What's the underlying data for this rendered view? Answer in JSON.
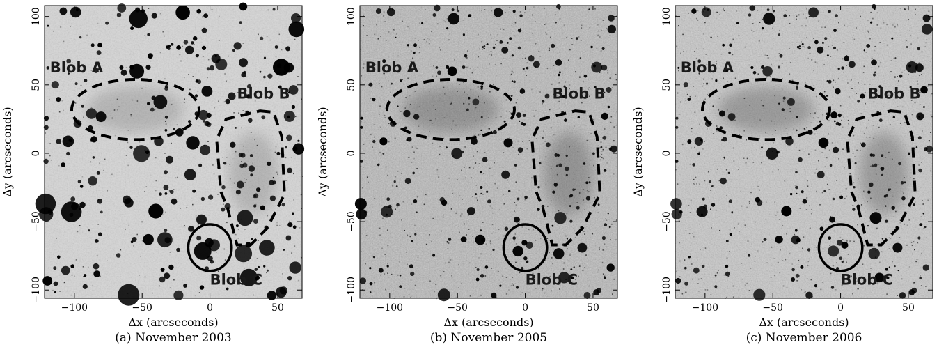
{
  "panels": [
    {
      "caption": "(a) November 2003",
      "noise_base": 212,
      "noise_amp": 62,
      "star_scale": 1.35
    },
    {
      "caption": "(b) November 2005",
      "noise_base": 160,
      "noise_amp": 110,
      "star_scale": 0.85
    },
    {
      "caption": "(c) November 2006",
      "noise_base": 190,
      "noise_amp": 80,
      "star_scale": 0.9
    }
  ],
  "axes": {
    "xlabel": "Δx (arcseconds)",
    "ylabel": "Δy (arcseconds)",
    "xlim": [
      -122,
      68
    ],
    "ylim": [
      -106,
      108
    ],
    "xticks": [
      -100,
      -50,
      0,
      50
    ],
    "yticks": [
      -100,
      -50,
      0,
      50,
      100
    ]
  },
  "blobs": {
    "a_label": "Blob A",
    "b_label": "Blob B",
    "c_label": "Blob C",
    "a_center": [
      -55,
      32
    ],
    "a_radii": [
      47,
      22
    ],
    "b_outline": [
      [
        37,
        31
      ],
      [
        47,
        30
      ],
      [
        53,
        12
      ],
      [
        55,
        -30
      ],
      [
        42,
        -55
      ],
      [
        30,
        -67
      ],
      [
        20,
        -67
      ],
      [
        13,
        -40
      ],
      [
        8,
        -28
      ],
      [
        5,
        10
      ],
      [
        12,
        25
      ],
      [
        25,
        28
      ]
    ],
    "c_center": [
      0,
      -69
    ],
    "c_radii": [
      16,
      17
    ]
  },
  "colors": {
    "ink": "#000000",
    "label": "#1a1a1a"
  }
}
